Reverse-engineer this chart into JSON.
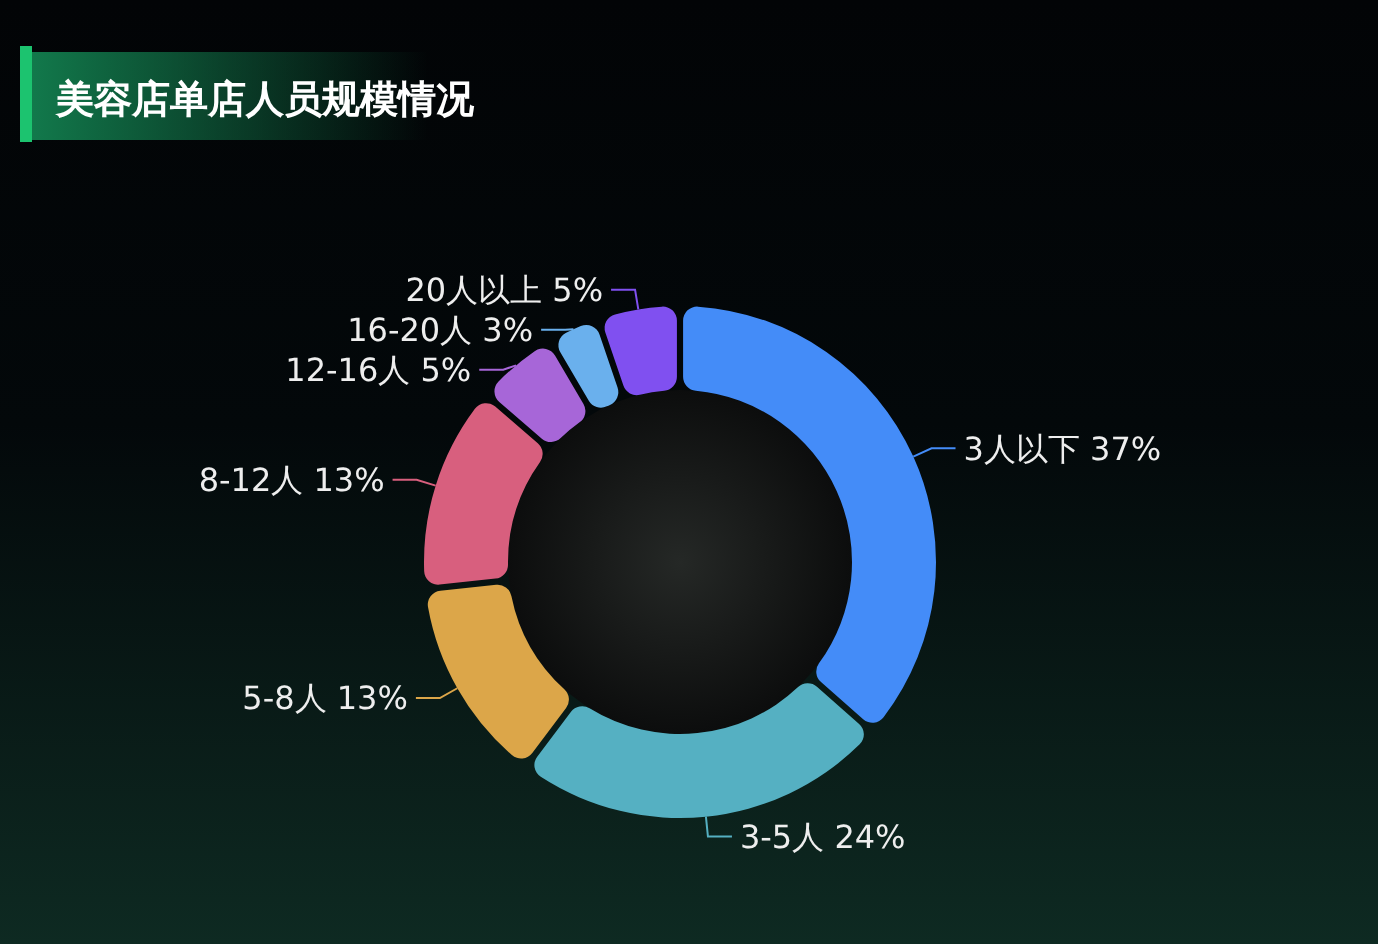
{
  "chart_data": {
    "type": "donut",
    "title": "美容店单店人员规模情况",
    "categories": [
      "3人以下",
      "3-5人",
      "5-8人",
      "8-12人",
      "12-16人",
      "16-20人",
      "20人以上"
    ],
    "values": [
      37,
      24,
      13,
      13,
      5,
      3,
      5
    ],
    "value_labels": [
      "37%",
      "24%",
      "13%",
      "13%",
      "5%",
      "3%",
      "5%"
    ],
    "colors": [
      "#448cf8",
      "#55b0c2",
      "#dca649",
      "#d85f7e",
      "#a766d8",
      "#6ab0ed",
      "#8050f0"
    ],
    "legend": false
  }
}
